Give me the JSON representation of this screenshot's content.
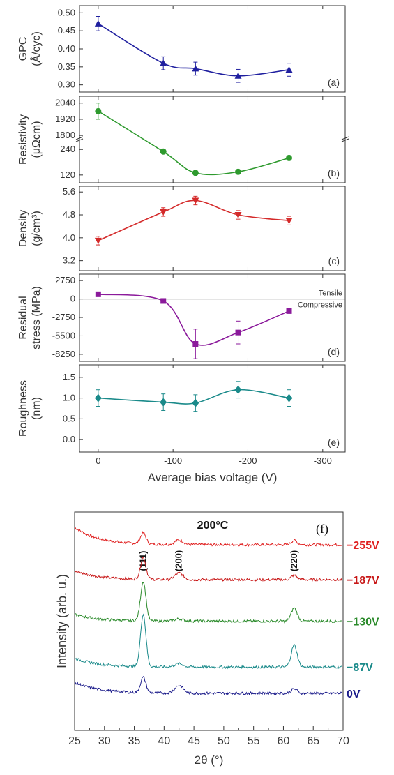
{
  "chart_data": [
    {
      "type": "line",
      "panel": "(a)",
      "ylabel_lines": [
        "GPC",
        "(Å/cyc)"
      ],
      "x": [
        0,
        -87,
        -130,
        -187,
        -255
      ],
      "values": [
        0.47,
        0.36,
        0.345,
        0.325,
        0.342
      ],
      "errors": [
        0.02,
        0.018,
        0.018,
        0.018,
        0.018
      ],
      "yticks": [
        0.3,
        0.35,
        0.4,
        0.45,
        0.5
      ],
      "ylim": [
        0.28,
        0.52
      ],
      "color": "#1f1f9f",
      "marker": "triangle"
    },
    {
      "type": "line",
      "panel": "(b)",
      "ylabel_lines": [
        "Resistivity",
        "(μΩcm)"
      ],
      "broken_axis": true,
      "x": [
        0,
        -87,
        -130,
        -187,
        -255
      ],
      "values": [
        1980,
        230,
        130,
        135,
        200
      ],
      "errors": [
        60,
        0,
        0,
        0,
        0
      ],
      "yticks": [
        120,
        240,
        1800,
        1920,
        2040
      ],
      "color": "#2e9a2e",
      "marker": "circle"
    },
    {
      "type": "line",
      "panel": "(c)",
      "ylabel_lines": [
        "Density",
        "(g/cm³)"
      ],
      "x": [
        0,
        -87,
        -130,
        -187,
        -255
      ],
      "values": [
        3.9,
        4.9,
        5.3,
        4.8,
        4.6
      ],
      "errors": [
        0.15,
        0.15,
        0.15,
        0.15,
        0.15
      ],
      "yticks": [
        3.2,
        4.0,
        4.8,
        5.6
      ],
      "ylim": [
        2.85,
        5.8
      ],
      "color": "#d42a2a",
      "marker": "triangle-down"
    },
    {
      "type": "line",
      "panel": "(d)",
      "ylabel_lines": [
        "Residual",
        "stress (MPa)"
      ],
      "x": [
        0,
        -87,
        -130,
        -187,
        -255
      ],
      "values": [
        700,
        -300,
        -6700,
        -5000,
        -1800
      ],
      "errors": [
        0,
        0,
        2200,
        1700,
        0
      ],
      "yticks": [
        -8250,
        -5500,
        -2750,
        0,
        2750
      ],
      "ylim": [
        -9300,
        3700
      ],
      "color": "#8b1a9b",
      "marker": "square",
      "annotations": [
        "Tensile",
        "Compressive"
      ]
    },
    {
      "type": "line",
      "panel": "(e)",
      "ylabel_lines": [
        "Roughness",
        "(nm)"
      ],
      "x": [
        0,
        -87,
        -130,
        -187,
        -255
      ],
      "values": [
        1.0,
        0.9,
        0.88,
        1.2,
        1.0
      ],
      "errors": [
        0.2,
        0.2,
        0.2,
        0.2,
        0.2
      ],
      "yticks": [
        0.0,
        0.5,
        1.0,
        1.5
      ],
      "ylim": [
        -0.3,
        1.8
      ],
      "color": "#1a8a8a",
      "marker": "diamond",
      "xlabel": "Average bias voltage (V)",
      "xticks": [
        0,
        -100,
        -200,
        -300
      ],
      "xlim": [
        25,
        -330
      ]
    },
    {
      "type": "line",
      "panel": "(f)",
      "title": "200°C",
      "xlabel": "2θ (°)",
      "ylabel": "Intensity (arb. u.)",
      "xticks": [
        25,
        30,
        35,
        40,
        45,
        50,
        55,
        60,
        65,
        70
      ],
      "xlim": [
        25,
        70
      ],
      "peak_labels": [
        {
          "label": "(111)",
          "x": 36.5
        },
        {
          "label": "(200)",
          "x": 42.5
        },
        {
          "label": "(220)",
          "x": 61.8
        }
      ],
      "series": [
        {
          "name": "−255V",
          "color": "#e02020",
          "baseline": 0.85,
          "peaks": [
            0.05,
            0.02,
            0.02
          ],
          "start": 0.93
        },
        {
          "name": "−187V",
          "color": "#c81818",
          "baseline": 0.69,
          "peaks": [
            0.1,
            0.03,
            0.02
          ],
          "start": 0.73
        },
        {
          "name": "−130V",
          "color": "#2a8a2a",
          "baseline": 0.5,
          "peaks": [
            0.18,
            0.01,
            0.06
          ],
          "start": 0.53
        },
        {
          "name": "−87V",
          "color": "#1a8a8a",
          "baseline": 0.29,
          "peaks": [
            0.24,
            0.015,
            0.1
          ],
          "start": 0.33
        },
        {
          "name": "0V",
          "color": "#1a1a8a",
          "baseline": 0.17,
          "peaks": [
            0.07,
            0.035,
            0.02
          ],
          "start": 0.22
        }
      ]
    }
  ]
}
